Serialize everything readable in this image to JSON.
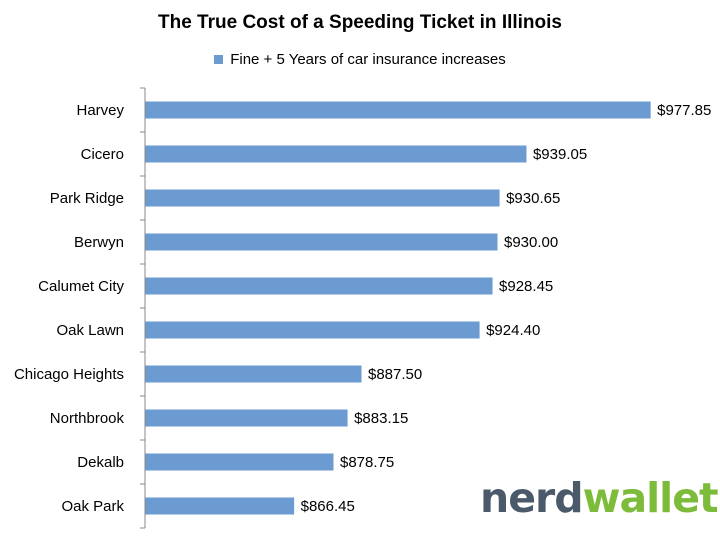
{
  "chart_data": {
    "type": "bar",
    "orientation": "horizontal",
    "title": "The True Cost of a Speeding Ticket in Illinois",
    "categories": [
      "Harvey",
      "Cicero",
      "Park Ridge",
      "Berwyn",
      "Calumet City",
      "Oak Lawn",
      "Chicago Heights",
      "Northbrook",
      "Dekalb",
      "Oak Park"
    ],
    "series": [
      {
        "name": "Fine + 5 Years of car insurance increases",
        "values": [
          977.85,
          939.05,
          930.65,
          930.0,
          928.45,
          924.4,
          887.5,
          883.15,
          878.75,
          866.45
        ],
        "labels": [
          "$977.85",
          "$939.05",
          "$930.65",
          "$930.00",
          "$928.45",
          "$924.40",
          "$887.50",
          "$883.15",
          "$878.75",
          "$866.45"
        ],
        "color": "#6b9bd1"
      }
    ],
    "legend_position": "top",
    "grid": false,
    "xaxis_visible": false,
    "xlim": [
      820,
      985
    ]
  },
  "logo": {
    "part1": "nerd",
    "part2": "wallet",
    "color1": "#4a5a6a",
    "color2": "#7cbc3a"
  },
  "colors": {
    "axis": "#888888"
  }
}
